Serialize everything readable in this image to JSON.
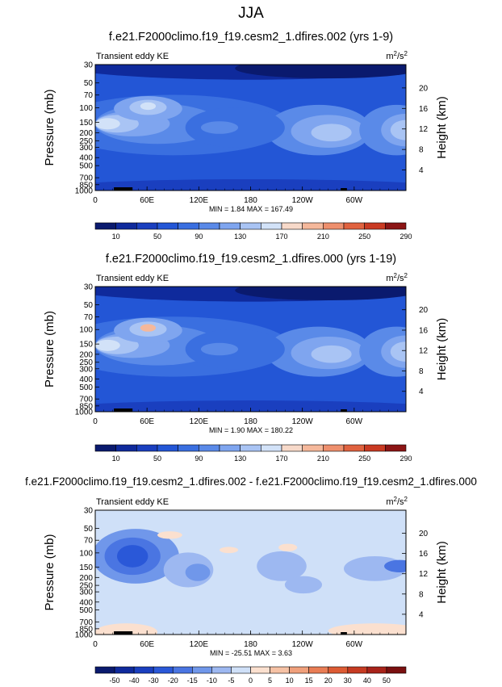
{
  "page_title": "JJA",
  "chart_data": [
    {
      "type": "heatmap",
      "title": "f.e21.F2000climo.f19_f19.cesm2_1.dfires.002 (yrs 1-9)",
      "left_label": "Transient eddy KE",
      "units": "m²/s²",
      "units_base": "m",
      "units_sup1": "2",
      "units_mid": "/s",
      "units_sup2": "2",
      "ylabel": "Pressure (mb)",
      "ylabel_right": "Height (km)",
      "pressure_ticks": [
        30,
        50,
        70,
        100,
        150,
        200,
        250,
        300,
        400,
        500,
        700,
        850,
        1000
      ],
      "height_ticks": [
        4,
        8,
        12,
        16,
        20
      ],
      "x_ticks": [
        "0",
        "60E",
        "120E",
        "180",
        "120W",
        "60W"
      ],
      "min_max": "MIN =   1.84  MAX = 167.49",
      "colorbar_labels": [
        "10",
        "50",
        "90",
        "130",
        "170",
        "210",
        "250",
        "290"
      ],
      "colorbar_levels": 15,
      "palette": "blue_red"
    },
    {
      "type": "heatmap",
      "title": "f.e21.F2000climo.f19_f19.cesm2_1.dfires.000 (yrs 1-19)",
      "left_label": "Transient eddy KE",
      "units": "m²/s²",
      "units_base": "m",
      "units_sup1": "2",
      "units_mid": "/s",
      "units_sup2": "2",
      "ylabel": "Pressure (mb)",
      "ylabel_right": "Height (km)",
      "pressure_ticks": [
        30,
        50,
        70,
        100,
        150,
        200,
        250,
        300,
        400,
        500,
        700,
        850,
        1000
      ],
      "height_ticks": [
        4,
        8,
        12,
        16,
        20
      ],
      "x_ticks": [
        "0",
        "60E",
        "120E",
        "180",
        "120W",
        "60W"
      ],
      "min_max": "MIN =   1.90  MAX = 180.22",
      "colorbar_labels": [
        "10",
        "50",
        "90",
        "130",
        "170",
        "210",
        "250",
        "290"
      ],
      "colorbar_levels": 15,
      "palette": "blue_red"
    },
    {
      "type": "heatmap",
      "title": "f.e21.F2000climo.f19_f19.cesm2_1.dfires.002 - f.e21.F2000climo.f19_f19.cesm2_1.dfires.000",
      "left_label": "Transient eddy KE",
      "units": "m²/s²",
      "units_base": "m",
      "units_sup1": "2",
      "units_mid": "/s",
      "units_sup2": "2",
      "ylabel": "Pressure (mb)",
      "ylabel_right": "Height (km)",
      "pressure_ticks": [
        30,
        50,
        70,
        100,
        150,
        200,
        250,
        300,
        400,
        500,
        700,
        850,
        1000
      ],
      "height_ticks": [
        4,
        8,
        12,
        16,
        20
      ],
      "x_ticks": [
        "0",
        "60E",
        "120E",
        "180",
        "120W",
        "60W"
      ],
      "min_max": "MIN = -25.51  MAX =   3.63",
      "colorbar_labels": [
        "-50",
        "-40",
        "-30",
        "-20",
        "-15",
        "-10",
        "-5",
        "0",
        "5",
        "10",
        "15",
        "20",
        "30",
        "40",
        "50"
      ],
      "colorbar_levels": 16,
      "palette": "diff"
    }
  ],
  "colors": {
    "blue_red": [
      "#0a1a6e",
      "#0f2a9c",
      "#1a3fbf",
      "#2356d6",
      "#3a6fe0",
      "#5a8ae8",
      "#7fa5ef",
      "#a9c4f4",
      "#d2e2f8",
      "#f7d9c9",
      "#f5b89b",
      "#ee8f6d",
      "#e0623f",
      "#c93a22",
      "#8c1515"
    ],
    "diff": [
      "#0a1a6e",
      "#0f2a9c",
      "#1a3fbf",
      "#2a58d8",
      "#4a75e2",
      "#7097ea",
      "#9db8f1",
      "#cfe0f8",
      "#fbe0cf",
      "#f6c2a5",
      "#f0a07c",
      "#e97d55",
      "#dd5b34",
      "#c63b22",
      "#a8231a",
      "#7a1010"
    ]
  }
}
